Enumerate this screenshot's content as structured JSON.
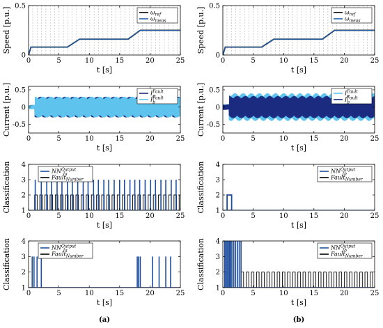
{
  "figure": {
    "panel_labels": [
      "(a)",
      "(b)"
    ]
  },
  "chart_data": [
    {
      "id": "a-speed",
      "type": "line",
      "column": 0,
      "row": 0,
      "kind": "speed",
      "xlabel": "t [s]",
      "ylabel": "Speed [p.u.]",
      "xlim": [
        0,
        25
      ],
      "ylim": [
        0,
        0.5
      ],
      "xticks": [
        0,
        5,
        10,
        15,
        20,
        25
      ],
      "yticks": [
        0,
        0.5
      ],
      "legend": "top-right",
      "series": [
        {
          "name": "ω_ref",
          "color": "#000000",
          "x": [
            0,
            0.4,
            6.4,
            8.4,
            16.4,
            18.4,
            25
          ],
          "y": [
            0,
            0.08,
            0.08,
            0.16,
            0.16,
            0.25,
            0.25
          ]
        },
        {
          "name": "ω_meas",
          "color": "#1f5faa",
          "x": [
            0,
            0.4,
            6.4,
            8.4,
            16.4,
            18.4,
            25
          ],
          "y": [
            0,
            0.08,
            0.08,
            0.16,
            0.16,
            0.25,
            0.25
          ]
        }
      ]
    },
    {
      "id": "b-speed",
      "type": "line",
      "column": 1,
      "row": 0,
      "kind": "speed",
      "xlabel": "t [s]",
      "ylabel": "Speed [p.u.]",
      "xlim": [
        0,
        25
      ],
      "ylim": [
        0,
        0.5
      ],
      "xticks": [
        0,
        5,
        10,
        15,
        20,
        25
      ],
      "yticks": [
        0,
        0.5
      ],
      "legend": "top-right",
      "series": [
        {
          "name": "ω_ref",
          "color": "#000000",
          "x": [
            0,
            0.4,
            6.4,
            8.4,
            16.4,
            18.4,
            25
          ],
          "y": [
            0,
            0.08,
            0.08,
            0.16,
            0.16,
            0.25,
            0.25
          ]
        },
        {
          "name": "ω_meas",
          "color": "#1f5faa",
          "x": [
            0,
            0.4,
            6.4,
            8.4,
            16.4,
            18.4,
            25
          ],
          "y": [
            0,
            0.08,
            0.08,
            0.16,
            0.16,
            0.25,
            0.25
          ]
        }
      ]
    },
    {
      "id": "a-current",
      "type": "line",
      "column": 0,
      "row": 1,
      "kind": "current",
      "xlabel": "t [s]",
      "ylabel": "Current [p.u.]",
      "xlim": [
        0,
        25
      ],
      "ylim": [
        -0.75,
        0.6
      ],
      "xticks": [
        0,
        5,
        10,
        15,
        20,
        25
      ],
      "yticks": [
        -0.5,
        0,
        0.5
      ],
      "legend": "top-right",
      "series": [
        {
          "name": "I_a^Fault",
          "color": "#1a2b80",
          "x": [
            0,
            1,
            25
          ],
          "y": [
            0.06,
            0.3,
            0.3
          ]
        },
        {
          "name": "I_b^Fault",
          "color": "#5ec4ee",
          "x": [
            0,
            1,
            25
          ],
          "y": [
            0.06,
            0.3,
            0.3
          ]
        }
      ]
    },
    {
      "id": "b-current",
      "type": "line",
      "column": 1,
      "row": 1,
      "kind": "current",
      "xlabel": "t [s]",
      "ylabel": "Current [p.u.]",
      "xlim": [
        0,
        25
      ],
      "ylim": [
        -0.75,
        0.6
      ],
      "xticks": [
        0,
        5,
        10,
        15,
        20,
        25
      ],
      "yticks": [
        -0.5,
        0,
        0.5
      ],
      "legend": "top-right",
      "series": [
        {
          "name": "I_a^Fault",
          "color": "#5ec4ee",
          "x": [
            0,
            1,
            25
          ],
          "y": [
            0.08,
            0.4,
            0.4
          ]
        },
        {
          "name": "I_b^Fault",
          "color": "#1a2b80",
          "x": [
            0,
            1,
            25
          ],
          "y": [
            0.08,
            0.32,
            0.32
          ]
        }
      ]
    },
    {
      "id": "a-class-1",
      "type": "line",
      "column": 0,
      "row": 2,
      "kind": "class",
      "xlabel": "t [s]",
      "ylabel": "Classification",
      "xlim": [
        0,
        25
      ],
      "ylim": [
        1,
        4
      ],
      "xticks": [
        0,
        5,
        10,
        15,
        20,
        25
      ],
      "yticks": [
        1,
        2,
        3,
        4
      ],
      "legend": "top-left",
      "fault_pulses": {
        "start": 1,
        "period": 0.85,
        "width": 0.42,
        "end": 25,
        "high": 2,
        "low": 1
      },
      "series": [
        {
          "name": "NN_Ia^Output",
          "color": "#1f4e9c",
          "level": 3,
          "spikes": [
            1.1,
            2.1,
            3.0,
            3.8,
            4.7,
            5.5,
            6.4,
            7.2,
            8.1,
            9.0,
            9.8,
            10.7,
            11.5,
            12.4,
            13.2,
            14.1,
            15.0,
            15.8,
            16.7,
            17.5,
            18.3,
            19.2,
            20.1,
            20.9,
            21.8,
            22.6,
            23.5,
            24.3
          ]
        },
        {
          "name": "Fault_Number",
          "color": "#000000"
        }
      ]
    },
    {
      "id": "b-class-1",
      "type": "line",
      "column": 1,
      "row": 2,
      "kind": "class",
      "xlabel": "t [s]",
      "ylabel": "Classification",
      "xlim": [
        0,
        25
      ],
      "ylim": [
        1,
        4
      ],
      "xticks": [
        0,
        5,
        10,
        15,
        20,
        25
      ],
      "yticks": [
        1,
        2,
        3,
        4
      ],
      "legend": "top-right",
      "series": [
        {
          "name": "NN_Ib^Output",
          "color": "#1f4e9c",
          "blocks": [
            {
              "x0": 0.7,
              "x1": 1.45,
              "level": 2
            }
          ]
        },
        {
          "name": "Fault_Number",
          "color": "#000000",
          "constant": 1
        }
      ]
    },
    {
      "id": "a-class-2",
      "type": "line",
      "column": 0,
      "row": 3,
      "kind": "class",
      "xlabel": "t [s]",
      "ylabel": "Classification",
      "xlim": [
        0,
        25
      ],
      "ylim": [
        1,
        4
      ],
      "xticks": [
        0,
        5,
        10,
        15,
        20,
        25
      ],
      "yticks": [
        1,
        2,
        3,
        4
      ],
      "legend": "top-left",
      "series": [
        {
          "name": "NN_Ia^Output",
          "color": "#1f4e9c",
          "level": 3,
          "spikes": [
            0.6,
            0.9,
            1.4,
            2.1,
            17.9,
            18.1,
            18.4,
            20.4,
            21.5,
            22.6,
            23.4
          ]
        },
        {
          "name": "Fault_Number",
          "color": "#000000",
          "constant": 1
        }
      ]
    },
    {
      "id": "b-class-2",
      "type": "line",
      "column": 1,
      "row": 3,
      "kind": "class",
      "xlabel": "t [s]",
      "ylabel": "Classification",
      "xlim": [
        0,
        25
      ],
      "ylim": [
        1,
        4
      ],
      "xticks": [
        0,
        5,
        10,
        15,
        20,
        25
      ],
      "yticks": [
        1,
        2,
        3,
        4
      ],
      "legend": "top-right",
      "fault_pulses": {
        "start": 3,
        "period": 0.85,
        "width": 0.42,
        "end": 25,
        "high": 2,
        "low": 1
      },
      "series": [
        {
          "name": "NN_Ib^Output",
          "color": "#1f4e9c",
          "level": 4,
          "spikes": [
            0.3,
            0.5,
            0.7,
            0.9,
            1.1,
            1.3,
            1.5,
            1.8,
            2.1,
            2.4,
            2.7,
            3.0
          ]
        },
        {
          "name": "Fault_Number",
          "color": "#000000"
        }
      ]
    }
  ]
}
